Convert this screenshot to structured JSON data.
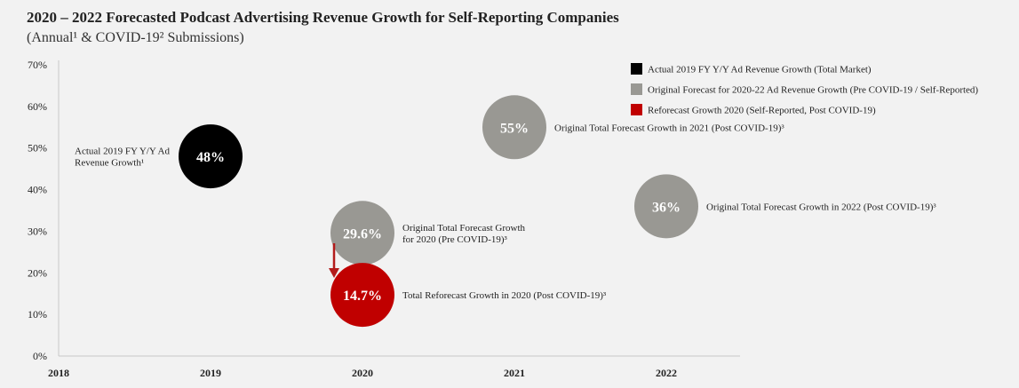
{
  "title": "2020 – 2022 Forecasted Podcast Advertising Revenue Growth for Self-Reporting Companies",
  "subtitle": "(Annual¹ & COVID-19² Submissions)",
  "colors": {
    "actual": "#000000",
    "forecast": "#999893",
    "reforecast": "#c00000",
    "arrow": "#b31b1b"
  },
  "chart_data": {
    "type": "scatter",
    "x_ticks": [
      "2018",
      "2019",
      "2020",
      "2021",
      "2022"
    ],
    "y_ticks": [
      "0%",
      "10%",
      "20%",
      "30%",
      "40%",
      "50%",
      "60%",
      "70%"
    ],
    "xlim": [
      2018,
      2022.5
    ],
    "ylim": [
      0,
      70
    ],
    "grid": false,
    "legend_position": "top-right",
    "legend": [
      {
        "label": "Actual 2019 FY Y/Y Ad Revenue Growth (Total Market)",
        "color": "#000000"
      },
      {
        "label": "Original Forecast for 2020-22 Ad Revenue Growth (Pre COVID-19 / Self-Reported)",
        "color": "#999893"
      },
      {
        "label": "Reforecast Growth 2020 (Self-Reported, Post COVID-19)",
        "color": "#c00000"
      }
    ],
    "points": [
      {
        "x": 2019,
        "y": 48,
        "label": "48%",
        "color": "#000000",
        "annotation": [
          "Actual 2019 FY Y/Y Ad",
          "Revenue Growth¹"
        ],
        "annot_side": "left"
      },
      {
        "x": 2020,
        "y": 29.6,
        "label": "29.6%",
        "color": "#999893",
        "annotation": [
          "Original Total Forecast Growth",
          "for  2020 (Pre COVID-19)³"
        ],
        "annot_side": "right"
      },
      {
        "x": 2020,
        "y": 14.7,
        "label": "14.7%",
        "color": "#c00000",
        "annotation": [
          "Total Reforecast Growth in 2020 (Post COVID-19)³"
        ],
        "annot_side": "right"
      },
      {
        "x": 2021,
        "y": 55,
        "label": "55%",
        "color": "#999893",
        "annotation": [
          "Original Total Forecast Growth in 2021 (Post COVID-19)³"
        ],
        "annot_side": "right"
      },
      {
        "x": 2022,
        "y": 36,
        "label": "36%",
        "color": "#999893",
        "annotation": [
          "Original Total Forecast Growth in 2022 (Post COVID-19)³"
        ],
        "annot_side": "right"
      }
    ]
  }
}
